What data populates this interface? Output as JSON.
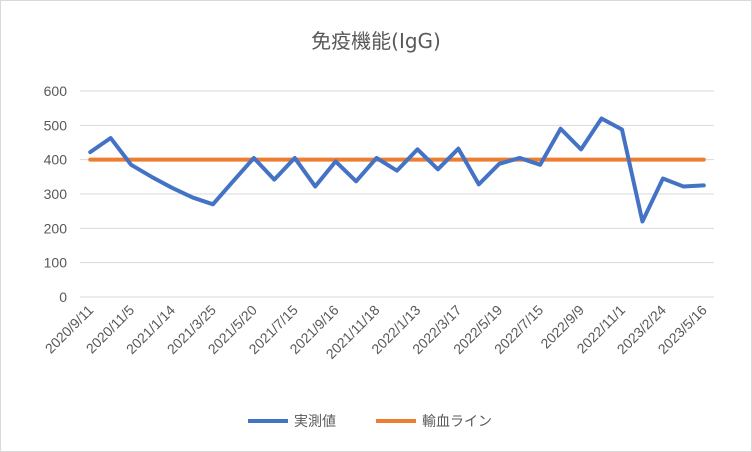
{
  "chart_data": {
    "type": "line",
    "title": "免疫機能(IgG)",
    "ylim": [
      0,
      600
    ],
    "yticks": [
      0,
      100,
      200,
      300,
      400,
      500,
      600
    ],
    "grid": true,
    "legend_position": "bottom",
    "x_tick_labels": [
      "2020/9/11",
      "2020/11/5",
      "2021/1/14",
      "2021/3/25",
      "2021/5/20",
      "2021/7/15",
      "2021/9/16",
      "2021/11/18",
      "2022/1/13",
      "2022/3/17",
      "2022/5/19",
      "2022/7/15",
      "2022/9/9",
      "2022/11/1",
      "2023/2/24",
      "2023/5/16"
    ],
    "n_points": 31,
    "series": [
      {
        "name": "実測値",
        "color": "#4472c4",
        "values": [
          422,
          463,
          385,
          350,
          318,
          290,
          270,
          338,
          405,
          342,
          405,
          322,
          395,
          337,
          405,
          368,
          430,
          372,
          432,
          328,
          388,
          405,
          385,
          490,
          430,
          520,
          488,
          220,
          345,
          322,
          325
        ]
      },
      {
        "name": "輸血ライン",
        "color": "#ed7d31",
        "values": [
          400,
          400,
          400,
          400,
          400,
          400,
          400,
          400,
          400,
          400,
          400,
          400,
          400,
          400,
          400,
          400,
          400,
          400,
          400,
          400,
          400,
          400,
          400,
          400,
          400,
          400,
          400,
          400,
          400,
          400,
          400
        ]
      }
    ]
  }
}
